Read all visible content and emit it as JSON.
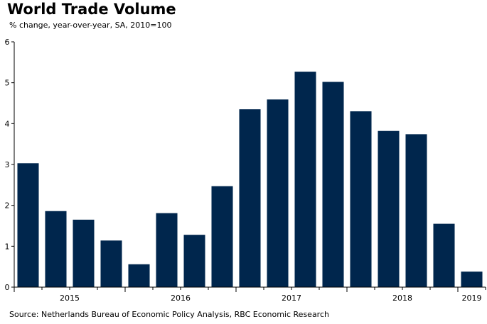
{
  "chart_data": {
    "type": "bar",
    "title": "World Trade Volume",
    "subtitle": "% change, year-over-year, SA, 2010=100",
    "source": "Source: Netherlands Bureau of Economic Policy Analysis, RBC Economic Research",
    "x_tick_labels": [
      "2015",
      "2016",
      "2017",
      "2018",
      "2019"
    ],
    "y_ticks": [
      0,
      1,
      2,
      3,
      4,
      5,
      6
    ],
    "ylim": [
      0,
      6
    ],
    "grid": false,
    "bar_color": "#00264d",
    "categories": [
      "2015 Q1",
      "2015 Q2",
      "2015 Q3",
      "2015 Q4",
      "2016 Q1",
      "2016 Q2",
      "2016 Q3",
      "2016 Q4",
      "2017 Q1",
      "2017 Q2",
      "2017 Q3",
      "2017 Q4",
      "2018 Q1",
      "2018 Q2",
      "2018 Q3",
      "2018 Q4",
      "2019 Q1"
    ],
    "values": [
      3.03,
      1.86,
      1.65,
      1.14,
      0.56,
      1.81,
      1.28,
      2.47,
      4.35,
      4.59,
      5.27,
      5.02,
      4.3,
      3.82,
      3.74,
      1.55,
      0.38
    ]
  }
}
